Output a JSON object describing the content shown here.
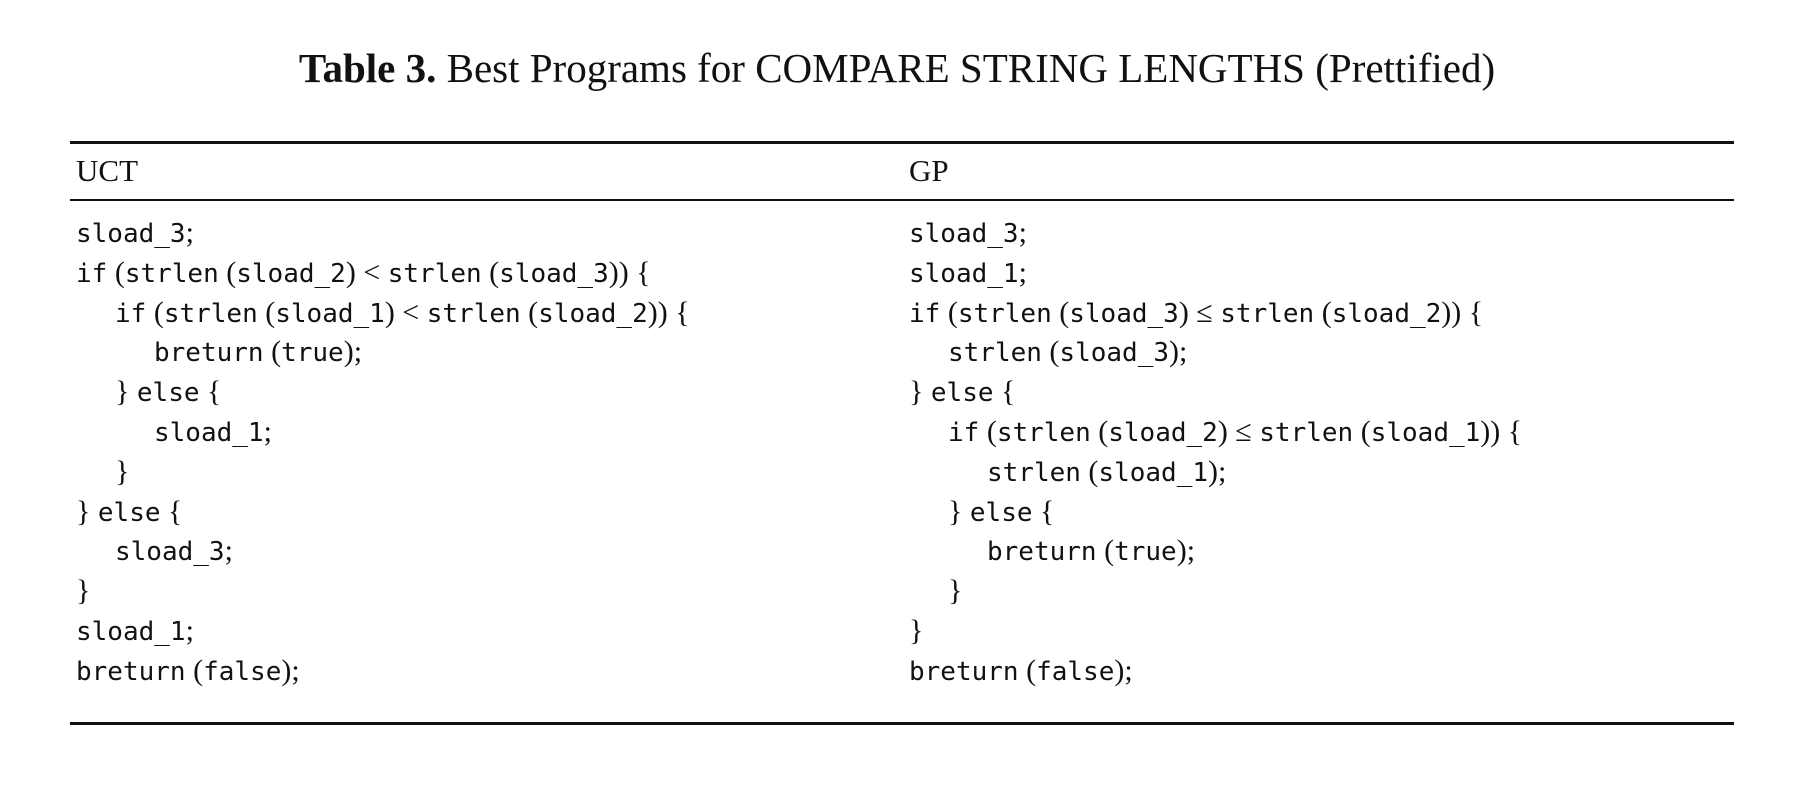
{
  "caption": {
    "label": "Table 3.",
    "text": "Best Programs for COMPARE STRING LENGTHS (Prettified)"
  },
  "table": {
    "columns": [
      {
        "header": "UCT",
        "lines": [
          {
            "indent": 0,
            "text": "sload_3;"
          },
          {
            "indent": 0,
            "text": "if (strlen (sload_2) < strlen (sload_3)) {"
          },
          {
            "indent": 1,
            "text": "if (strlen (sload_1) < strlen (sload_2)) {"
          },
          {
            "indent": 2,
            "text": "breturn (true);"
          },
          {
            "indent": 1,
            "text": "} else {"
          },
          {
            "indent": 2,
            "text": "sload_1;"
          },
          {
            "indent": 1,
            "text": "}"
          },
          {
            "indent": 0,
            "text": "} else {"
          },
          {
            "indent": 1,
            "text": "sload_3;"
          },
          {
            "indent": 0,
            "text": "}"
          },
          {
            "indent": 0,
            "text": "sload_1;"
          },
          {
            "indent": 0,
            "text": "breturn (false);"
          }
        ]
      },
      {
        "header": "GP",
        "lines": [
          {
            "indent": 0,
            "text": "sload_3;"
          },
          {
            "indent": 0,
            "text": "sload_1;"
          },
          {
            "indent": 0,
            "text": "if (strlen (sload_3) ≤ strlen (sload_2)) {"
          },
          {
            "indent": 1,
            "text": "strlen (sload_3);"
          },
          {
            "indent": 0,
            "text": "} else {"
          },
          {
            "indent": 1,
            "text": "if (strlen (sload_2) ≤ strlen (sload_1)) {"
          },
          {
            "indent": 2,
            "text": "strlen (sload_1);"
          },
          {
            "indent": 1,
            "text": "} else {"
          },
          {
            "indent": 2,
            "text": "breturn (true);"
          },
          {
            "indent": 1,
            "text": "}"
          },
          {
            "indent": 0,
            "text": "}"
          },
          {
            "indent": 0,
            "text": "breturn (false);"
          }
        ]
      }
    ]
  }
}
